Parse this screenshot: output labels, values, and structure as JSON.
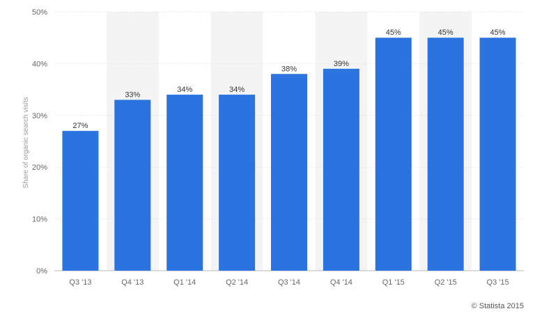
{
  "chart_data": {
    "type": "bar",
    "categories": [
      "Q3 '13",
      "Q4 '13",
      "Q1 '14",
      "Q2 '14",
      "Q3 '14",
      "Q4 '14",
      "Q1 '15",
      "Q2 '15",
      "Q3 '15"
    ],
    "values": [
      27,
      33,
      34,
      34,
      38,
      39,
      45,
      45,
      45
    ],
    "data_labels": [
      "27%",
      "33%",
      "34%",
      "34%",
      "38%",
      "39%",
      "45%",
      "45%",
      "45%"
    ],
    "ylabel": "Share of organic search visits",
    "ylim": [
      0,
      50
    ],
    "yticks": [
      0,
      10,
      20,
      30,
      40,
      50
    ],
    "ytick_labels": [
      "0%",
      "10%",
      "20%",
      "30%",
      "40%",
      "50%"
    ],
    "grid": true,
    "bar_color": "#2b74df",
    "band_color": "#f4f4f4"
  },
  "credit": "© Statista 2015"
}
